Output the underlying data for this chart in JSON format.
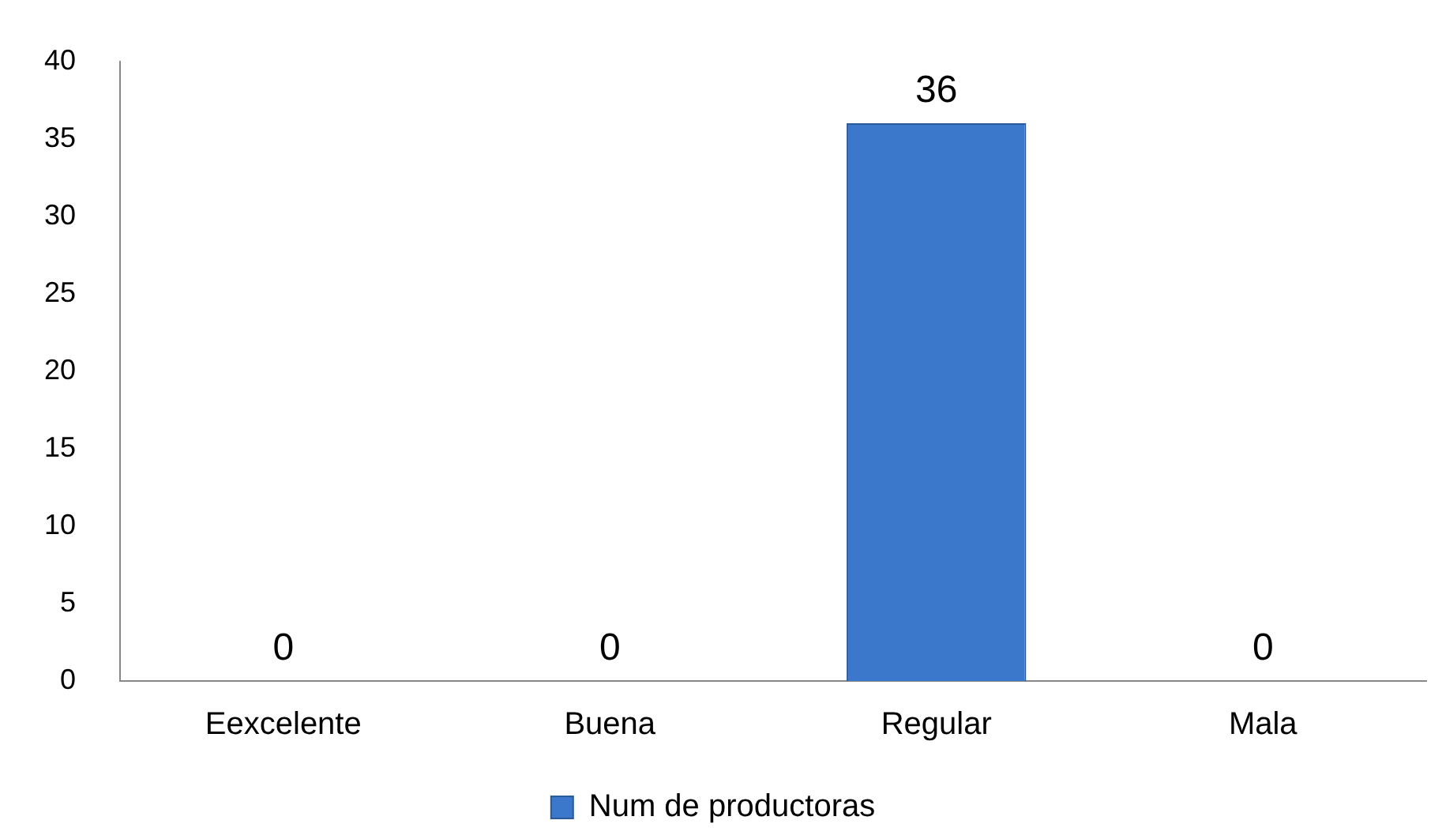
{
  "chart_data": {
    "type": "bar",
    "categories": [
      "Eexcelente",
      "Buena",
      "Regular",
      "Mala"
    ],
    "series": [
      {
        "name": "Num de productoras",
        "color": "#3b78cc",
        "values": [
          0,
          0,
          36,
          0
        ]
      }
    ],
    "ylim": [
      0,
      40
    ],
    "yticks": [
      0,
      5,
      10,
      15,
      20,
      25,
      30,
      35,
      40
    ],
    "grid": false,
    "legend": "bottom",
    "data_labels": true
  }
}
